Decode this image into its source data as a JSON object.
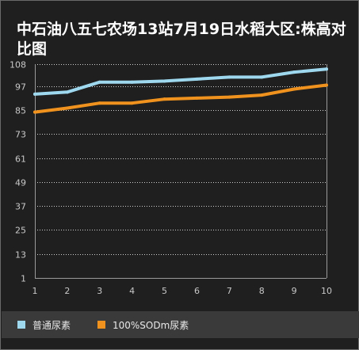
{
  "chart_data": {
    "type": "line",
    "title": "中石油八五七农场13站7月19日水稻大区:株高对比图",
    "x": [
      1,
      2,
      3,
      4,
      5,
      6,
      7,
      8,
      9,
      10
    ],
    "ylim": [
      1,
      108
    ],
    "y_ticks": [
      1,
      13,
      25,
      37,
      49,
      61,
      73,
      85,
      97,
      108
    ],
    "series": [
      {
        "name": "普通尿素",
        "values": [
          93,
          94,
          99,
          99,
          99.5,
          100.5,
          101.5,
          101.5,
          104,
          105.5
        ],
        "color": "#9ed8ef"
      },
      {
        "name": "100%SODm尿素",
        "values": [
          84,
          86,
          88.5,
          88.5,
          90.5,
          91,
          91.5,
          92.5,
          95.5,
          97.5
        ],
        "color": "#f0931e"
      }
    ],
    "grid": true,
    "legend_position": "bottom"
  },
  "colors": {
    "background": "#1f1f1f",
    "grid": "#cfcfcf",
    "axis_text": "#c8c8c8",
    "legend_bg": "#3a3a3a"
  }
}
